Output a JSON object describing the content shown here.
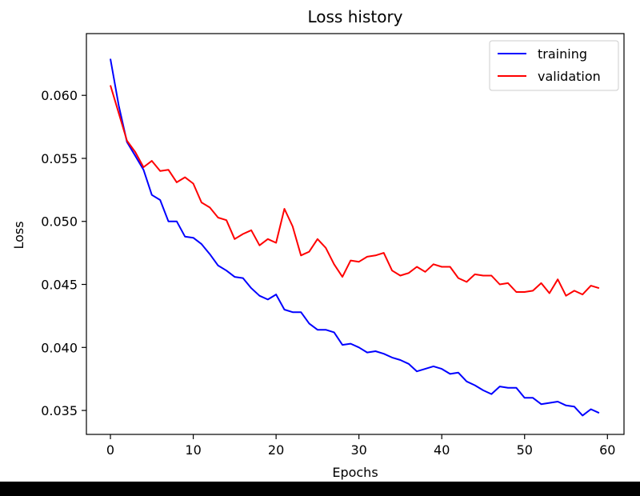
{
  "chart_data": {
    "type": "line",
    "title": "Loss history",
    "xlabel": "Epochs",
    "ylabel": "Loss",
    "xlim": [
      -2.9,
      62
    ],
    "ylim": [
      0.0331,
      0.0649
    ],
    "x_ticks": [
      0,
      10,
      20,
      30,
      40,
      50,
      60
    ],
    "y_ticks": [
      0.035,
      0.04,
      0.045,
      0.05,
      0.055,
      0.06
    ],
    "y_tick_labels": [
      "0.035",
      "0.040",
      "0.045",
      "0.050",
      "0.055",
      "0.060"
    ],
    "x_tick_labels": [
      "0",
      "10",
      "20",
      "30",
      "40",
      "50",
      "60"
    ],
    "grid": false,
    "legend_position": "top-right",
    "x": [
      0,
      1,
      2,
      3,
      4,
      5,
      6,
      7,
      8,
      9,
      10,
      11,
      12,
      13,
      14,
      15,
      16,
      17,
      18,
      19,
      20,
      21,
      22,
      23,
      24,
      25,
      26,
      27,
      28,
      29,
      30,
      31,
      32,
      33,
      34,
      35,
      36,
      37,
      38,
      39,
      40,
      41,
      42,
      43,
      44,
      45,
      46,
      47,
      48,
      49,
      50,
      51,
      52,
      53,
      54,
      55,
      56,
      57,
      58,
      59
    ],
    "series": [
      {
        "name": "training",
        "color": "#0000ff",
        "values": [
          0.0629,
          0.0592,
          0.0563,
          0.0552,
          0.0541,
          0.0521,
          0.0517,
          0.05,
          0.05,
          0.0488,
          0.0487,
          0.0482,
          0.0474,
          0.0465,
          0.0461,
          0.0456,
          0.0455,
          0.0447,
          0.0441,
          0.0438,
          0.0442,
          0.043,
          0.0428,
          0.0428,
          0.0419,
          0.0414,
          0.0414,
          0.0412,
          0.0402,
          0.0403,
          0.04,
          0.0396,
          0.0397,
          0.0395,
          0.0392,
          0.039,
          0.0387,
          0.0381,
          0.0383,
          0.0385,
          0.0383,
          0.0379,
          0.038,
          0.0373,
          0.037,
          0.0366,
          0.0363,
          0.0369,
          0.0368,
          0.0368,
          0.036,
          0.036,
          0.0355,
          0.0356,
          0.0357,
          0.0354,
          0.0353,
          0.0346,
          0.0351,
          0.0348
        ]
      },
      {
        "name": "validation",
        "color": "#ff0000",
        "values": [
          0.0608,
          0.0586,
          0.0564,
          0.0555,
          0.0543,
          0.0548,
          0.054,
          0.0541,
          0.0531,
          0.0535,
          0.053,
          0.0515,
          0.0511,
          0.0503,
          0.0501,
          0.0486,
          0.049,
          0.0493,
          0.0481,
          0.0486,
          0.0483,
          0.051,
          0.0496,
          0.0473,
          0.0476,
          0.0486,
          0.0479,
          0.0466,
          0.0456,
          0.0469,
          0.0468,
          0.0472,
          0.0473,
          0.0475,
          0.0461,
          0.0457,
          0.0459,
          0.0464,
          0.046,
          0.0466,
          0.0464,
          0.0464,
          0.0455,
          0.0452,
          0.0458,
          0.0457,
          0.0457,
          0.045,
          0.0451,
          0.0444,
          0.0444,
          0.0445,
          0.0451,
          0.0443,
          0.0454,
          0.0441,
          0.0445,
          0.0442,
          0.0449,
          0.0447
        ]
      }
    ]
  }
}
